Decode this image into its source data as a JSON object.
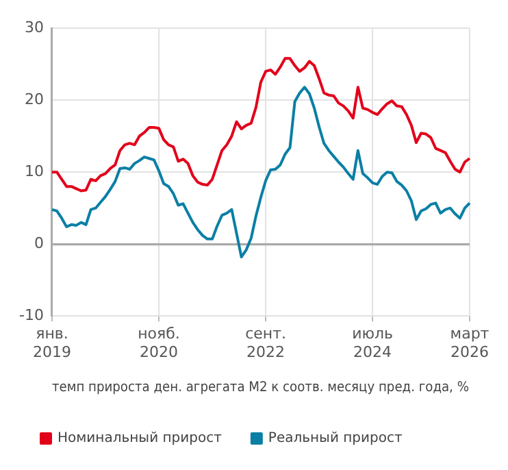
{
  "chart_data": {
    "type": "line",
    "xlabel": "темп прироста ден. агрегата M2 к соотв. месяцу пред. года, %",
    "categories": [
      "янв. 2019",
      null,
      null,
      null,
      null,
      null,
      null,
      null,
      null,
      null,
      null,
      null,
      null,
      null,
      null,
      null,
      null,
      null,
      null,
      null,
      null,
      null,
      "нояб. 2020",
      null,
      null,
      null,
      null,
      null,
      null,
      null,
      null,
      null,
      null,
      null,
      null,
      null,
      null,
      null,
      null,
      null,
      null,
      null,
      null,
      null,
      "сент. 2022",
      null,
      null,
      null,
      null,
      null,
      null,
      null,
      null,
      null,
      null,
      null,
      null,
      null,
      null,
      null,
      null,
      null,
      null,
      null,
      null,
      null,
      "июль 2024",
      null,
      null,
      null,
      null,
      null,
      null,
      null,
      null,
      null,
      null,
      null,
      null,
      null,
      null,
      null,
      null,
      null,
      null,
      null,
      "март 2026"
    ],
    "series": [
      {
        "name": "Номинальный прирост",
        "color": "#e2001a",
        "values": [
          10.0,
          10.0,
          9.0,
          8.0,
          8.0,
          7.7,
          7.4,
          7.5,
          9.0,
          8.8,
          9.5,
          9.8,
          10.5,
          11.0,
          13.0,
          13.8,
          14.0,
          13.8,
          15.0,
          15.5,
          16.2,
          16.2,
          16.1,
          14.5,
          13.8,
          13.5,
          11.5,
          11.8,
          11.2,
          9.5,
          8.6,
          8.3,
          8.2,
          9.0,
          11.0,
          13.0,
          13.8,
          15.0,
          17.0,
          16.0,
          16.5,
          16.8,
          19.0,
          22.5,
          24.0,
          24.2,
          23.6,
          24.6,
          25.8,
          25.8,
          24.8,
          24.0,
          24.5,
          25.4,
          24.8,
          23.0,
          21.0,
          20.7,
          20.6,
          19.6,
          19.2,
          18.5,
          17.5,
          21.8,
          18.9,
          18.7,
          18.3,
          18.0,
          18.8,
          19.5,
          19.9,
          19.2,
          19.1,
          18.0,
          16.5,
          14.1,
          15.4,
          15.3,
          14.8,
          13.3,
          13.0,
          12.7,
          11.5,
          10.4,
          10.0,
          11.4,
          11.9
        ]
      },
      {
        "name": "Реальный прирост",
        "color": "#0b7fa5",
        "values": [
          4.8,
          4.6,
          3.6,
          2.4,
          2.7,
          2.6,
          3.0,
          2.7,
          4.8,
          5.0,
          5.8,
          6.6,
          7.6,
          8.7,
          10.5,
          10.6,
          10.4,
          11.2,
          11.6,
          12.1,
          11.9,
          11.7,
          10.2,
          8.4,
          8.0,
          7.0,
          5.4,
          5.6,
          4.3,
          3.0,
          2.0,
          1.2,
          0.7,
          0.7,
          2.5,
          4.0,
          4.3,
          4.8,
          1.5,
          -1.8,
          -0.8,
          0.8,
          3.9,
          6.5,
          8.8,
          10.3,
          10.4,
          11.0,
          12.5,
          13.4,
          19.8,
          21.0,
          21.8,
          20.9,
          18.9,
          16.3,
          14.0,
          13.0,
          12.2,
          11.4,
          10.7,
          9.8,
          9.0,
          13.0,
          9.8,
          9.2,
          8.5,
          8.3,
          9.4,
          10.0,
          9.9,
          8.7,
          8.2,
          7.4,
          6.0,
          3.4,
          4.6,
          4.9,
          5.5,
          5.7,
          4.3,
          4.8,
          5.0,
          4.2,
          3.6,
          5.0,
          5.7
        ]
      }
    ],
    "ylim": [
      -10,
      30
    ],
    "yticks": [
      -10,
      0,
      10,
      20,
      30
    ],
    "grid": true,
    "legend": "bottom",
    "marker": "none",
    "line_style": "solid"
  }
}
